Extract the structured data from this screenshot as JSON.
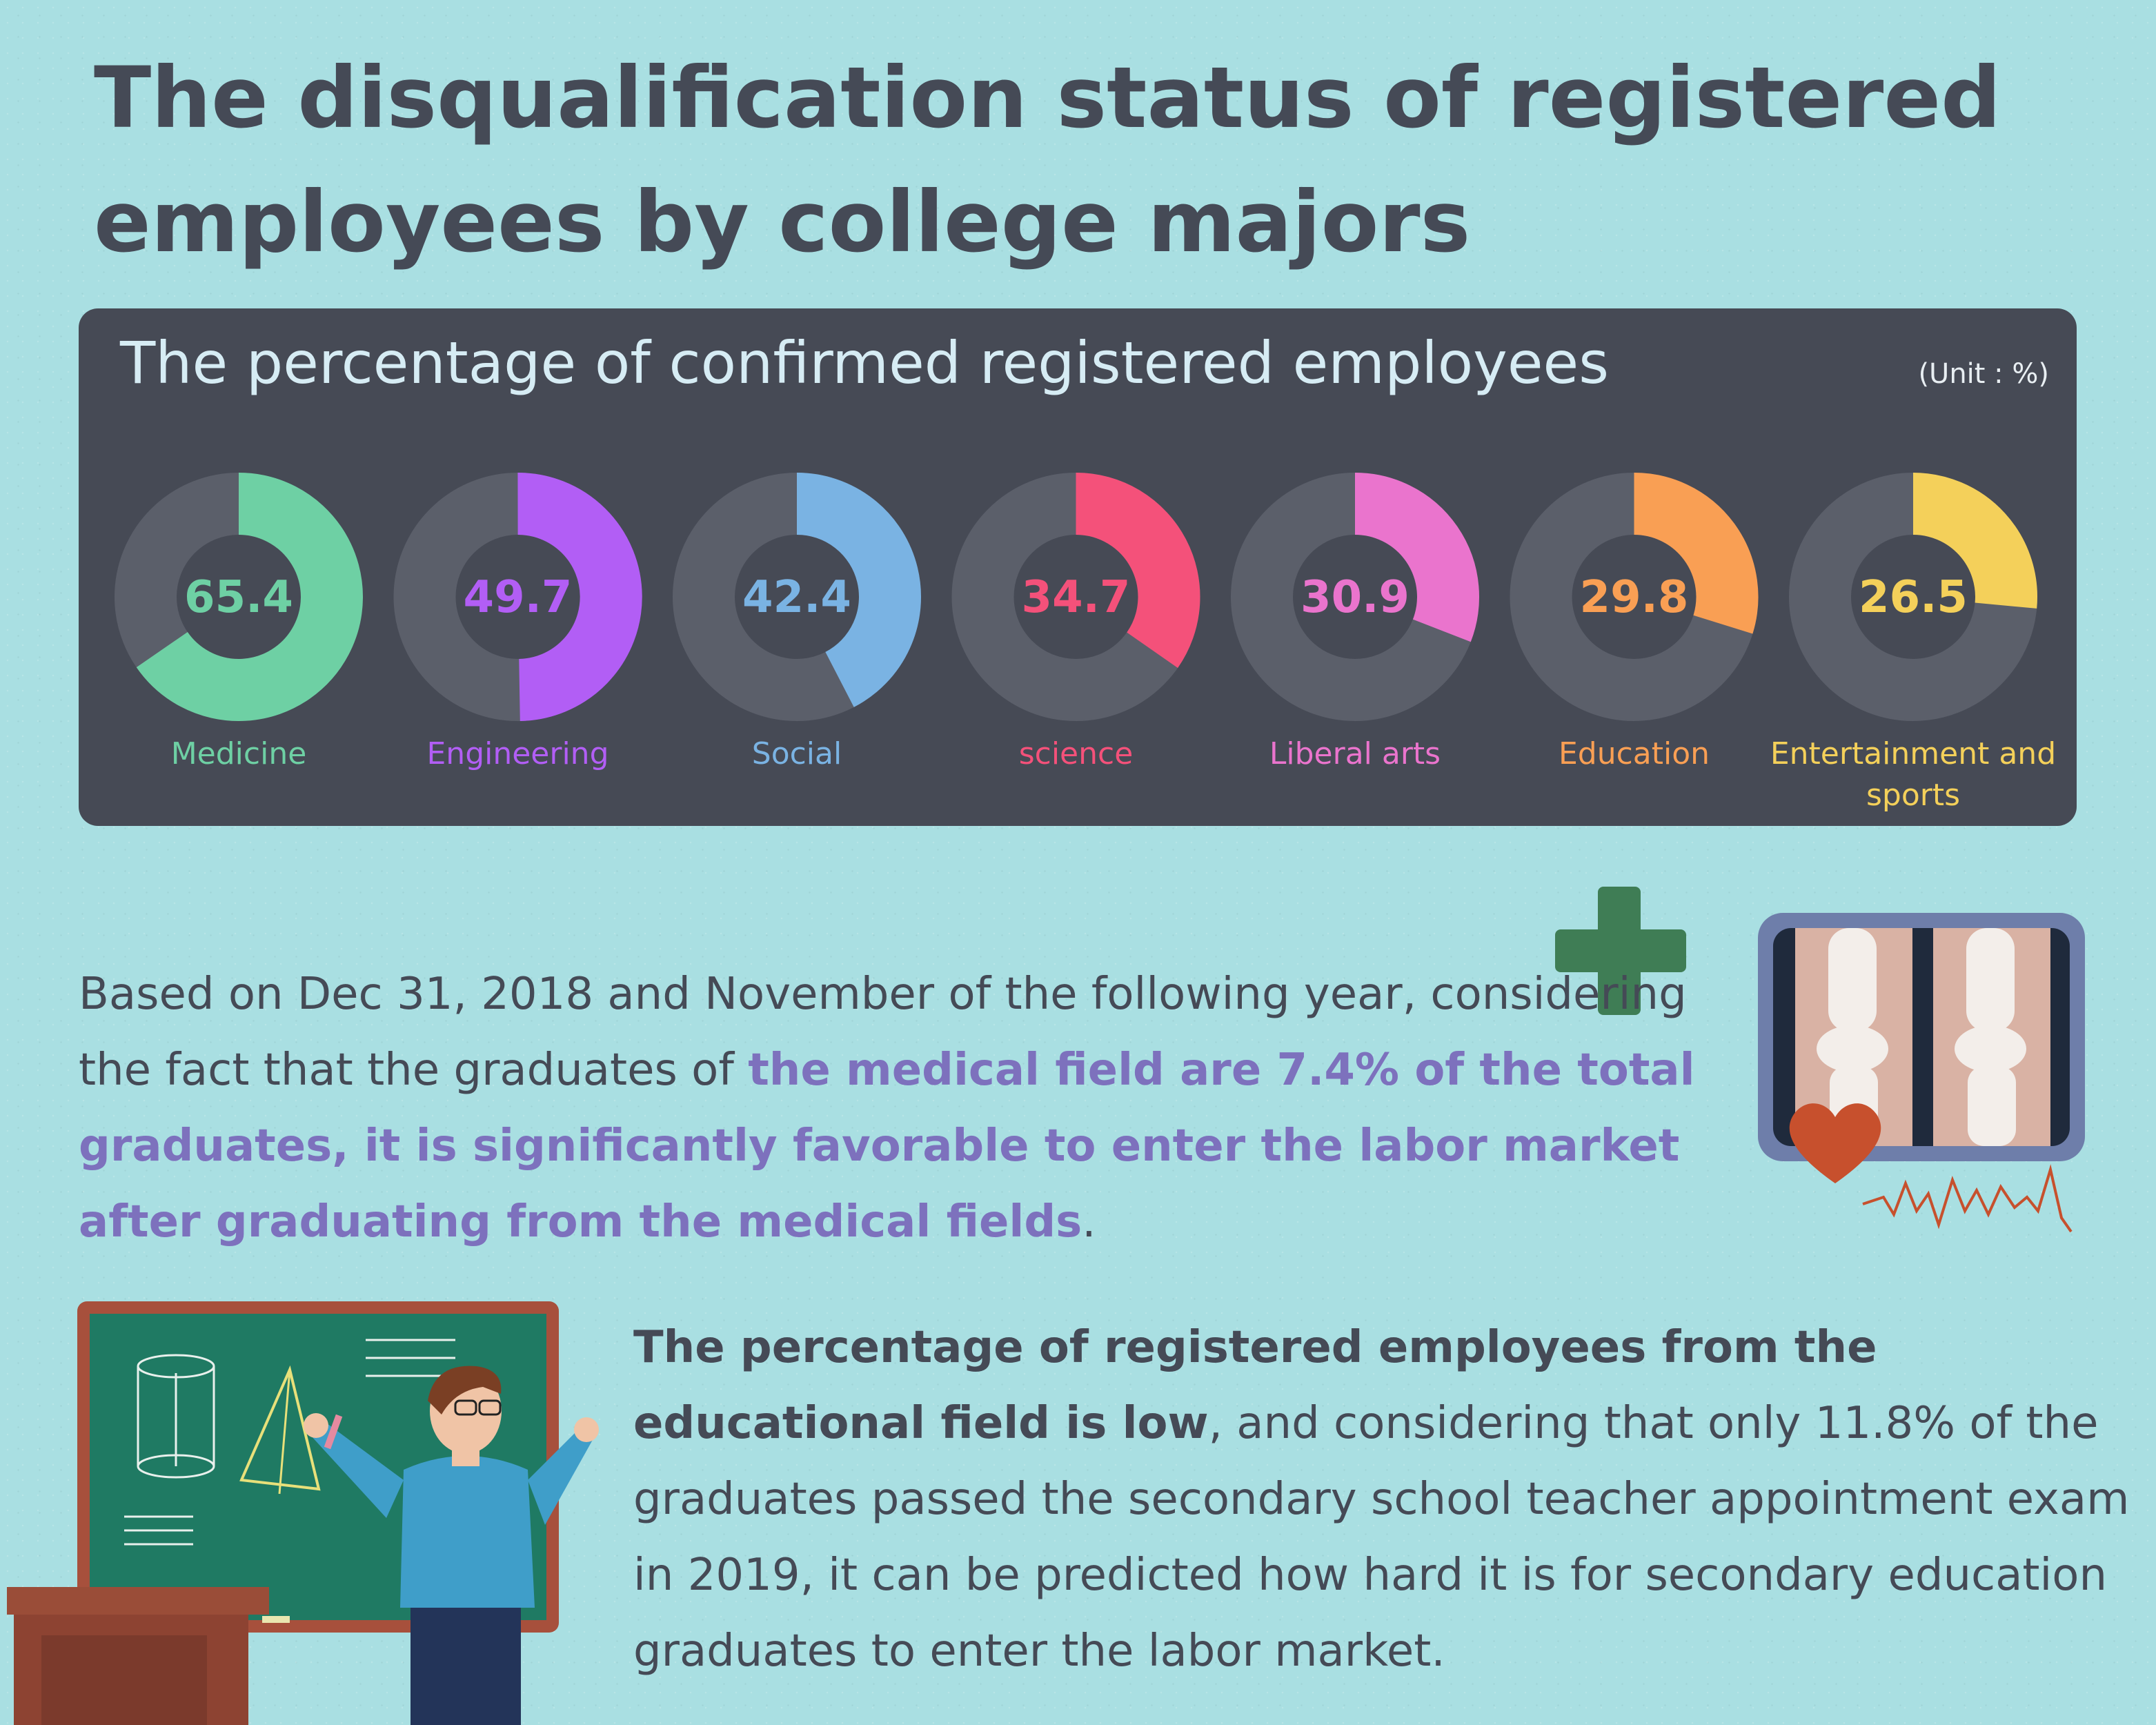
{
  "title": "The disqualification status of registered employees by college majors",
  "chart_data": {
    "type": "donut",
    "title": "The percentage of confirmed registered employees",
    "unit": "(Unit : %)",
    "categories": [
      "Medicine",
      "Engineering",
      "Social",
      "science",
      "Liberal arts",
      "Education",
      "Entertainment and sports"
    ],
    "values": [
      65.4,
      49.7,
      42.4,
      34.7,
      30.9,
      29.8,
      26.5
    ],
    "labels": [
      "65.4",
      "49.7",
      "42.4",
      "34.7",
      "30.9",
      "29.8",
      "26.5"
    ],
    "colors": [
      "#6ed0a4",
      "#b25ef5",
      "#7ab3e3",
      "#f4517a",
      "#ea74cd",
      "#f99f54",
      "#f4d05a"
    ],
    "track_color": "#5b5f6a",
    "max": 100
  },
  "paragraph1": {
    "text1": "Based on Dec 31, 2018 and November of the following year, considering the fact that the graduates of ",
    "highlight": "the medical field are 7.4% of the total graduates, it is significantly favorable to enter the labor market after graduating from the medical fields",
    "text2": "."
  },
  "paragraph2": {
    "bold": "The percentage of registered employees from the educational field is low",
    "text": ", and considering that only 11.8% of the graduates passed the secondary school teacher appointment exam in 2019, it can be predicted how hard it is for secondary education graduates to enter the labor market."
  },
  "icons": {
    "cross": "medical-cross-icon",
    "xray": "knee-xray-icon",
    "heart": "heart-icon",
    "teacher": "teacher-chalkboard-illustration"
  }
}
